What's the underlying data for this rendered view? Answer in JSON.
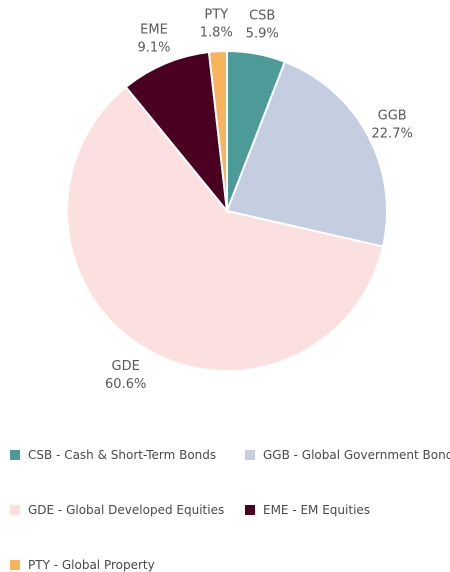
{
  "chart_data": {
    "type": "pie",
    "slices": [
      {
        "code": "CSB",
        "value": 5.9,
        "label_pct": "5.9%",
        "legend": "CSB - Cash & Short-Term Bonds",
        "color": "#4d9b98"
      },
      {
        "code": "GGB",
        "value": 22.7,
        "label_pct": "22.7%",
        "legend": "GGB - Global Government Bonds",
        "color": "#c5cde0"
      },
      {
        "code": "GDE",
        "value": 60.6,
        "label_pct": "60.6%",
        "legend": "GDE - Global Developed Equities",
        "color": "#fbe0df"
      },
      {
        "code": "EME",
        "value": 9.1,
        "label_pct": "9.1%",
        "legend": "EME - EM Equities",
        "color": "#4a0020"
      },
      {
        "code": "PTY",
        "value": 1.8,
        "label_pct": "1.8%",
        "legend": "PTY - Global Property",
        "color": "#f7b45c"
      }
    ],
    "start_angle": "12 o'clock",
    "direction": "clockwise",
    "legend_placement": "bottom"
  }
}
